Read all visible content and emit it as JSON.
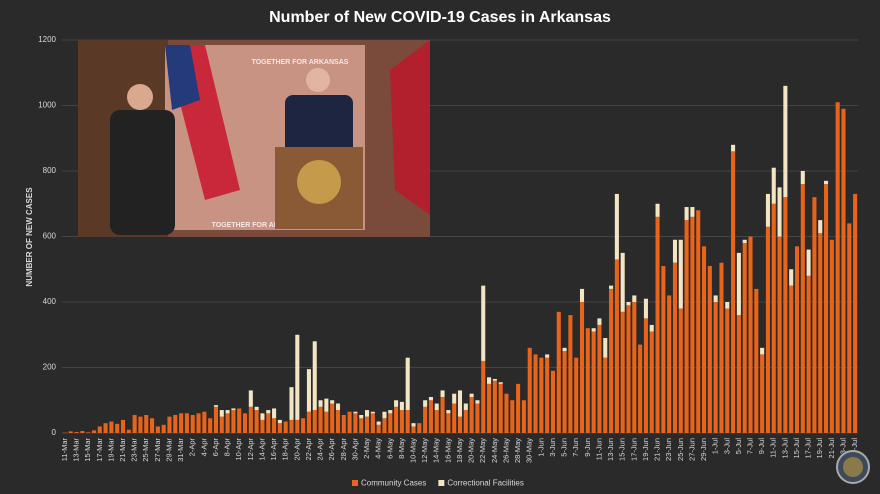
{
  "chart_data": {
    "type": "stacked_bar",
    "title": "Number of New COVID-19 Cases in Arkansas",
    "y_label": "NUMBER OF NEW CASES",
    "video_backdrop_text": "TOGETHER FOR ARKANSAS",
    "categories": [
      "11-Mar",
      null,
      "13-Mar",
      null,
      "15-Mar",
      null,
      "17-Mar",
      null,
      "19-Mar",
      null,
      "21-Mar",
      null,
      "23-Mar",
      null,
      "25-Mar",
      null,
      "27-Mar",
      null,
      "29-Mar",
      null,
      "31-Mar",
      null,
      "2-Apr",
      null,
      "4-Apr",
      null,
      "6-Apr",
      null,
      "8-Apr",
      null,
      "10-Apr",
      null,
      "12-Apr",
      null,
      "14-Apr",
      null,
      "16-Apr",
      null,
      "18-Apr",
      null,
      "20-Apr",
      null,
      "22-Apr",
      null,
      "24-Apr",
      null,
      "26-Apr",
      null,
      "28-Apr",
      null,
      "30-Apr",
      null,
      "2-May",
      null,
      "4-May",
      null,
      "6-May",
      null,
      "8-May",
      null,
      "10-May",
      null,
      "12-May",
      null,
      "14-May",
      null,
      "16-May",
      null,
      "18-May",
      null,
      "20-May",
      null,
      "22-May",
      null,
      "24-May",
      null,
      "26-May",
      null,
      "28-May",
      null,
      "30-May",
      null,
      "1-Jun",
      null,
      "3-Jun",
      null,
      "5-Jun",
      null,
      "7-Jun",
      null,
      "9-Jun",
      null,
      "11-Jun",
      null,
      "13-Jun",
      null,
      "15-Jun",
      null,
      "17-Jun",
      null,
      "19-Jun",
      null,
      "21-Jun",
      null,
      "23-Jun",
      null,
      "25-Jun",
      null,
      "27-Jun",
      null,
      "29-Jun",
      null,
      "1-Jul",
      null,
      "3-Jul",
      null,
      "5-Jul",
      null,
      "7-Jul",
      null,
      "9-Jul",
      null,
      "11-Jul",
      null,
      "13-Jul",
      null,
      "15-Jul",
      null,
      "17-Jul",
      null,
      "19-Jul",
      null,
      "21-Jul",
      null,
      "23-Jul",
      null,
      "25-Jul"
    ],
    "series": [
      {
        "name": "Community Cases",
        "color": "#e8641b",
        "values": [
          1,
          5,
          3,
          6,
          2,
          8,
          20,
          30,
          35,
          28,
          40,
          10,
          55,
          50,
          55,
          45,
          20,
          25,
          50,
          55,
          60,
          60,
          55,
          60,
          65,
          45,
          80,
          50,
          60,
          70,
          75,
          60,
          80,
          70,
          40,
          60,
          45,
          30,
          35,
          40,
          40,
          45,
          65,
          70,
          80,
          65,
          90,
          70,
          55,
          65,
          60,
          45,
          50,
          60,
          25,
          45,
          60,
          80,
          70,
          70,
          20,
          30,
          80,
          100,
          70,
          110,
          60,
          90,
          50,
          70,
          110,
          90,
          220,
          150,
          160,
          150,
          120,
          100,
          150,
          100,
          260,
          240,
          230,
          230,
          190,
          370,
          250,
          360,
          230,
          400,
          320,
          310,
          330,
          230,
          440,
          530,
          370,
          390,
          400,
          270,
          350,
          310,
          660,
          510,
          420,
          520,
          380,
          650,
          660,
          680,
          570,
          510,
          400,
          520,
          380,
          860,
          360,
          580,
          600,
          440,
          240,
          630,
          700,
          600,
          720,
          450,
          570,
          760,
          480,
          720,
          610,
          760,
          590,
          1010,
          990,
          640,
          730
        ]
      },
      {
        "name": "Correctional Facilities",
        "color": "#f3e4c4",
        "values": [
          0,
          0,
          0,
          0,
          0,
          0,
          0,
          0,
          0,
          0,
          0,
          0,
          0,
          0,
          0,
          0,
          0,
          0,
          0,
          0,
          0,
          0,
          0,
          0,
          0,
          0,
          5,
          20,
          10,
          5,
          0,
          0,
          50,
          10,
          20,
          10,
          30,
          10,
          0,
          100,
          260,
          0,
          130,
          210,
          20,
          40,
          10,
          20,
          0,
          0,
          5,
          10,
          20,
          5,
          10,
          20,
          10,
          20,
          25,
          160,
          10,
          0,
          20,
          10,
          20,
          20,
          10,
          30,
          80,
          20,
          10,
          10,
          230,
          20,
          5,
          5,
          0,
          0,
          0,
          0,
          0,
          0,
          0,
          10,
          0,
          0,
          10,
          0,
          0,
          40,
          0,
          10,
          20,
          60,
          10,
          200,
          180,
          10,
          20,
          0,
          60,
          20,
          40,
          0,
          0,
          70,
          210,
          40,
          30,
          0,
          0,
          0,
          20,
          0,
          20,
          20,
          190,
          10,
          0,
          0,
          20,
          100,
          110,
          150,
          340,
          50,
          0,
          40,
          80,
          0,
          40,
          10,
          0,
          0,
          0,
          0,
          0
        ]
      }
    ],
    "ylim": [
      0,
      1200
    ],
    "yticks": [
      0,
      200,
      400,
      600,
      800,
      1000,
      1200
    ],
    "grid": true,
    "legend": "bottom"
  }
}
